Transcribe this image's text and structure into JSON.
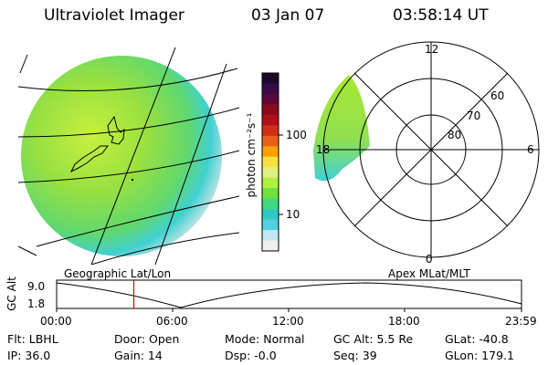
{
  "header": {
    "title": "Ultraviolet Imager",
    "date": "03 Jan 07",
    "time": "03:58:14 UT"
  },
  "colorbar": {
    "label": "photon cm⁻²s⁻¹",
    "ticks": [
      "100",
      "10"
    ],
    "colors": [
      "#1a0a2a",
      "#3a0a4a",
      "#5a0a3a",
      "#8a0a1a",
      "#b0101a",
      "#d0301a",
      "#e8601a",
      "#f8a000",
      "#f8e040",
      "#e0f080",
      "#b0f040",
      "#70e040",
      "#40d880",
      "#30c8c0",
      "#50d0e0",
      "#c0e8f0",
      "#f0f0f0"
    ]
  },
  "polar": {
    "mlt_labels": [
      "12",
      "6",
      "18",
      "0"
    ],
    "lat_labels": [
      "60",
      "70",
      "80"
    ]
  },
  "geo_label": "Geographic Lat/Lon",
  "apex_label": "Apex MLat/MLT",
  "timeline": {
    "ylabel": "GC Alt",
    "y_ticks": [
      "9.0",
      "1.8"
    ],
    "x_ticks": [
      "00:00",
      "06:00",
      "12:00",
      "18:00",
      "23:59"
    ],
    "current_fraction": 0.166
  },
  "info": {
    "flt": "Flt: LBHL",
    "ip": "IP: 36.0",
    "door": "Door: Open",
    "gain": "Gain: 14",
    "mode": "Mode: Normal",
    "dsp": "Dsp:   -0.0",
    "gcalt": "GC Alt: 5.5 Re",
    "seq": "Seq: 39",
    "glat": "GLat: -40.8",
    "glon": "GLon: 179.1"
  },
  "colors": {
    "accent_line": "#e00000",
    "green": "#a8e830",
    "cyan": "#40d0d8"
  }
}
